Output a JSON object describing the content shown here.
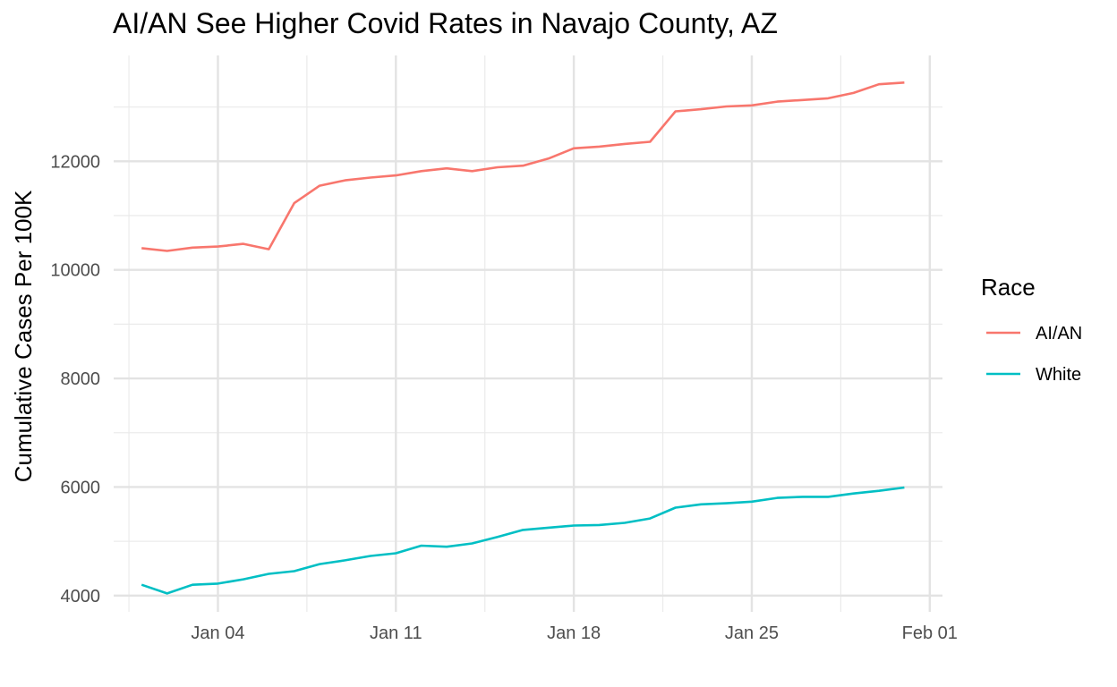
{
  "chart_data": {
    "type": "line",
    "title": "AI/AN See Higher Covid Rates in Navajo County, AZ",
    "xlabel": "",
    "ylabel": "Cumulative Cases Per 100K",
    "x_start": "2021-01-01",
    "x_ticks": [
      {
        "day": 3,
        "label": "Jan 04"
      },
      {
        "day": 10,
        "label": "Jan 11"
      },
      {
        "day": 17,
        "label": "Jan 18"
      },
      {
        "day": 24,
        "label": "Jan 25"
      },
      {
        "day": 31,
        "label": "Feb 01"
      }
    ],
    "x_minor_ticks": [
      -0.5,
      6.5,
      13.5,
      20.5,
      27.5
    ],
    "xlim": [
      -1.1,
      31.5
    ],
    "y_ticks": [
      4000,
      6000,
      8000,
      10000,
      12000
    ],
    "y_minor_ticks": [
      5000,
      7000,
      9000,
      11000,
      13000
    ],
    "ylim": [
      3700,
      13950
    ],
    "legend_title": "Race",
    "legend_position": "right",
    "series": [
      {
        "name": "AI/AN",
        "color": "#F8766D",
        "x": [
          0,
          1,
          2,
          3,
          4,
          5,
          6,
          7,
          8,
          9,
          10,
          11,
          12,
          13,
          14,
          15,
          16,
          17,
          18,
          19,
          20,
          21,
          22,
          23,
          24,
          25,
          26,
          27,
          28,
          29,
          30
        ],
        "values": [
          10400,
          10350,
          10410,
          10430,
          10480,
          10380,
          11230,
          11550,
          11650,
          11700,
          11740,
          11820,
          11870,
          11820,
          11890,
          11920,
          12050,
          12240,
          12270,
          12320,
          12360,
          12920,
          12960,
          13010,
          13030,
          13100,
          13130,
          13160,
          13260,
          13420,
          13450
        ]
      },
      {
        "name": "White",
        "color": "#00BFC4",
        "x": [
          0,
          1,
          2,
          3,
          4,
          5,
          6,
          7,
          8,
          9,
          10,
          11,
          12,
          13,
          14,
          15,
          16,
          17,
          18,
          19,
          20,
          21,
          22,
          23,
          24,
          25,
          26,
          27,
          28,
          29,
          30
        ],
        "values": [
          4200,
          4040,
          4200,
          4220,
          4300,
          4400,
          4450,
          4580,
          4650,
          4730,
          4780,
          4920,
          4900,
          4960,
          5080,
          5210,
          5250,
          5290,
          5300,
          5340,
          5420,
          5620,
          5680,
          5700,
          5730,
          5800,
          5820,
          5820,
          5880,
          5930,
          5990
        ]
      }
    ]
  }
}
